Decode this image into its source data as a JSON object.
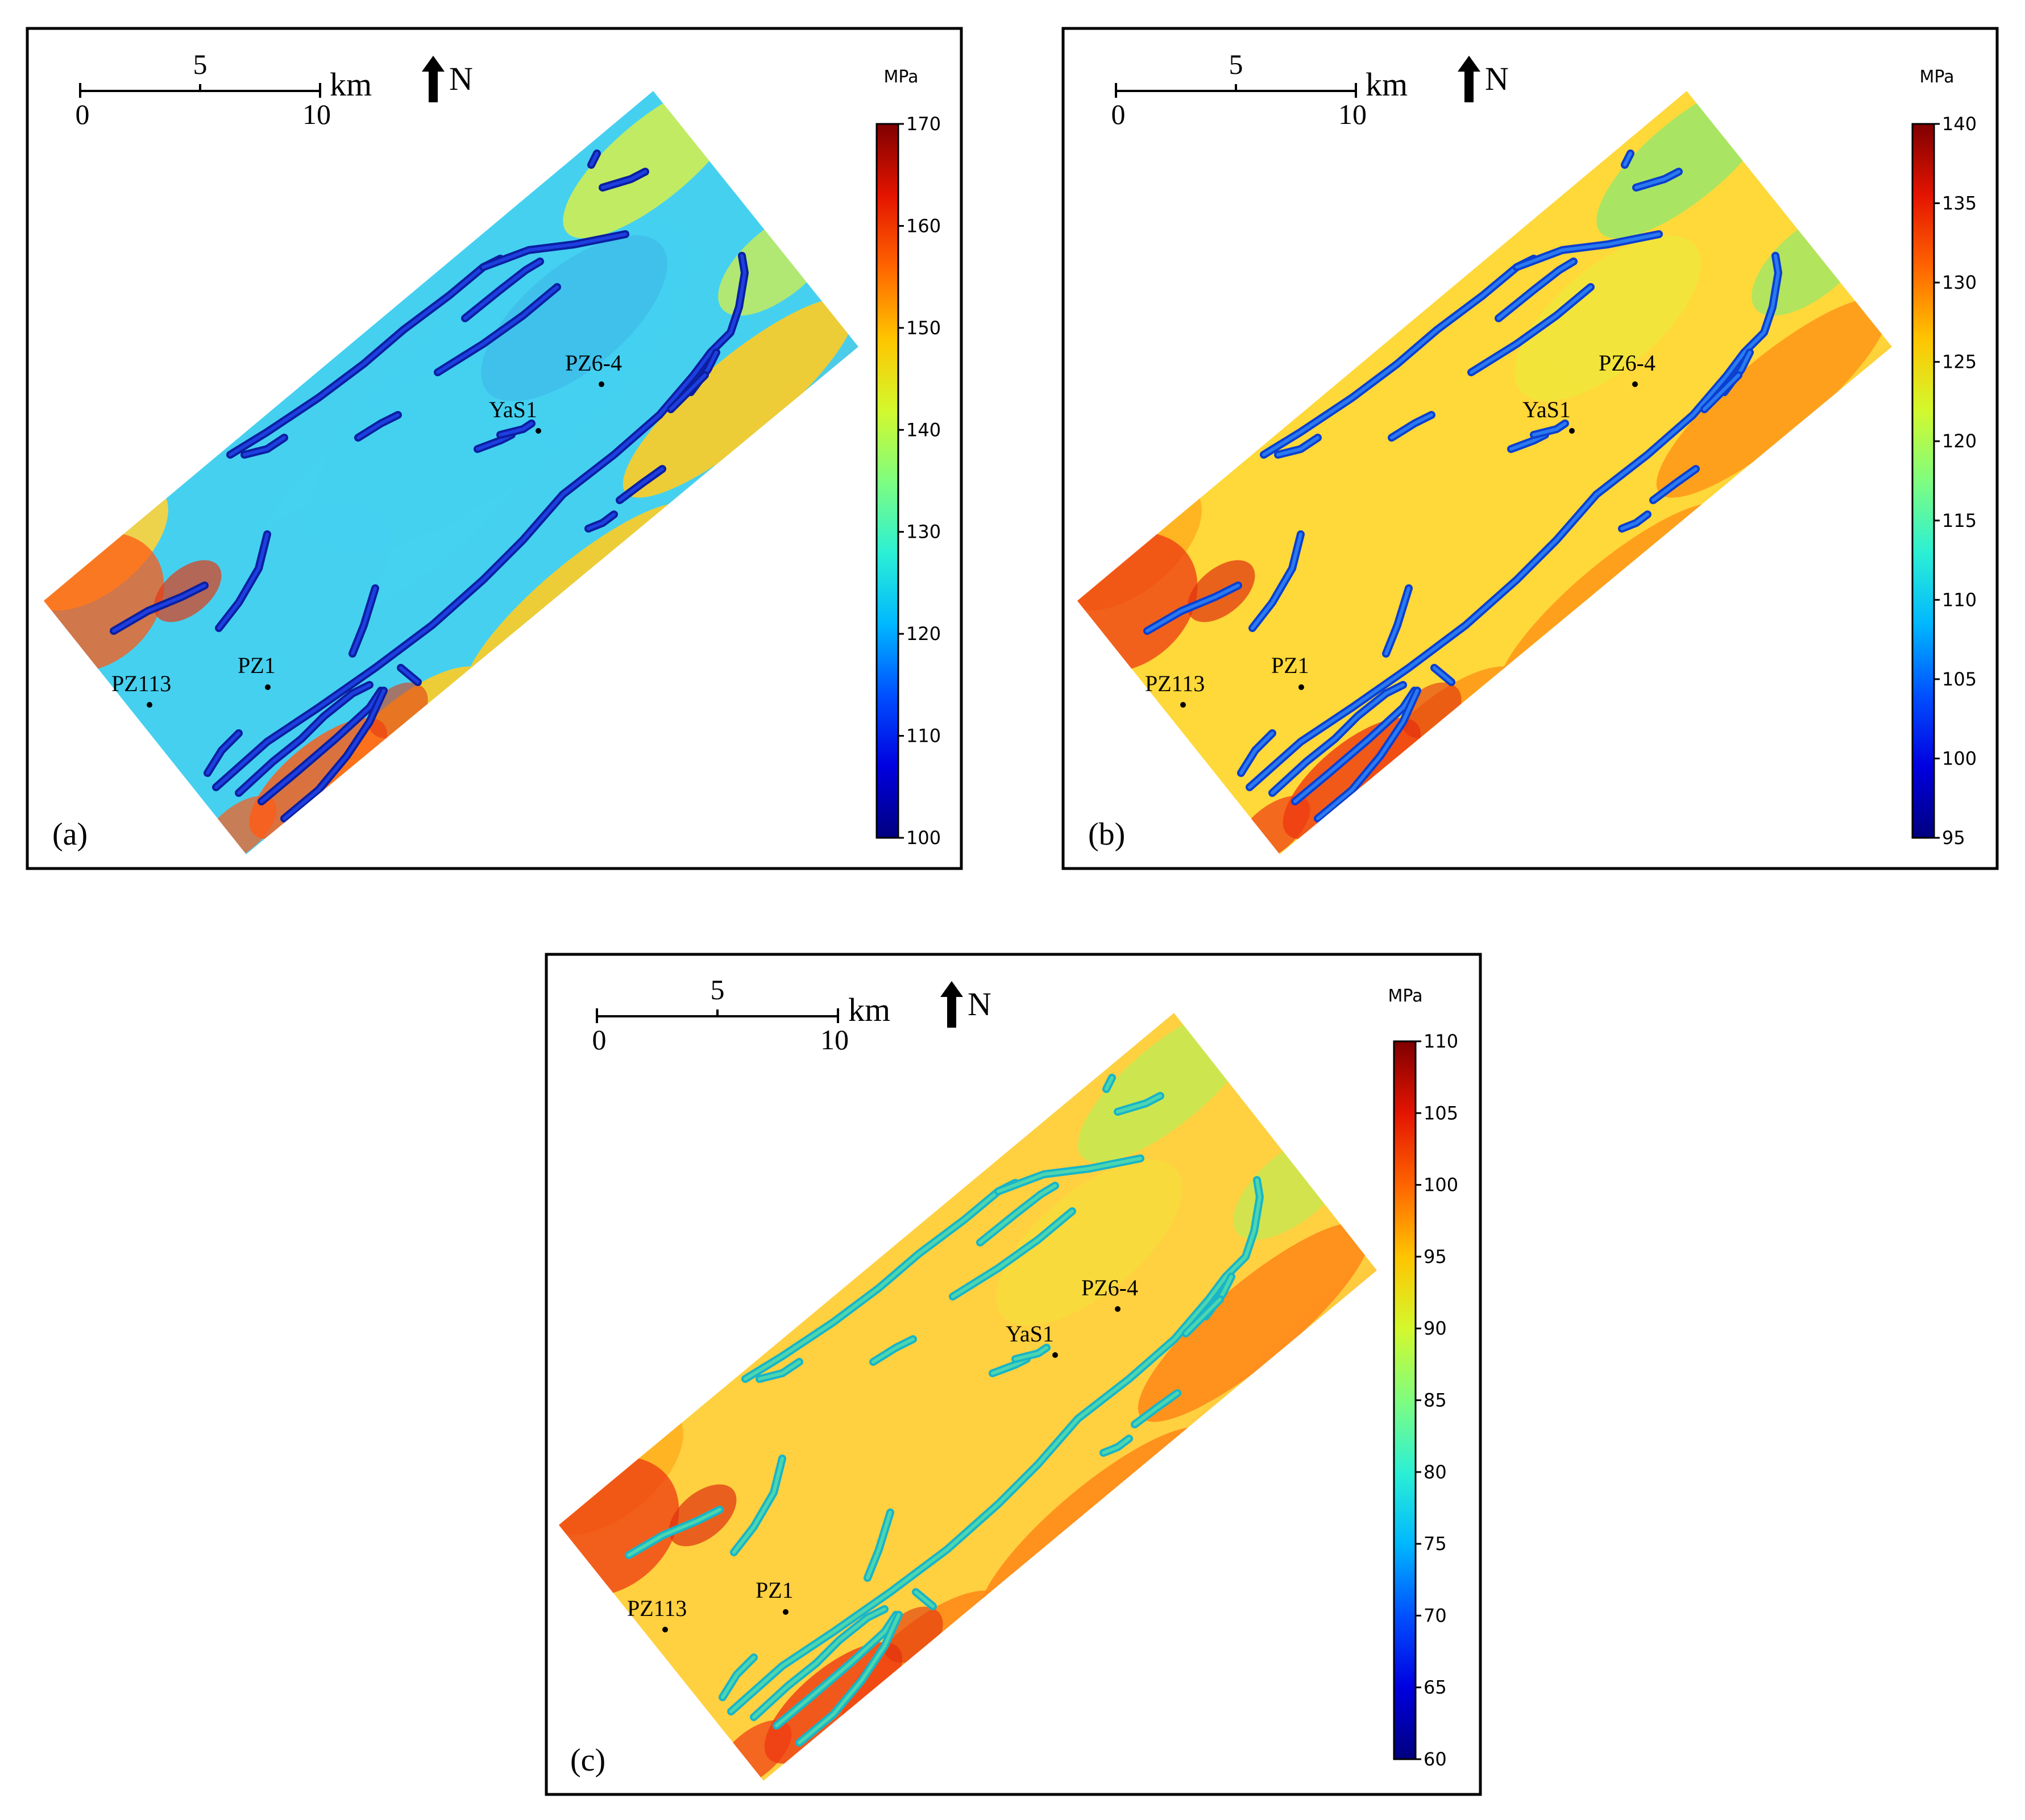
{
  "panels": [
    {
      "label": "(a)",
      "unit": "MPa",
      "colorbar": {
        "min": 100,
        "max": 170,
        "ticks": [
          "170",
          "160",
          "150",
          "140",
          "130",
          "120",
          "110",
          "100"
        ]
      },
      "scale_bar": {
        "zero": "0",
        "mid": "5",
        "end": "10",
        "unit": "km"
      },
      "north_label": "N",
      "wells": [
        {
          "name": "PZ6-4",
          "id": "pz6-4"
        },
        {
          "name": "YaS1",
          "id": "yas1"
        },
        {
          "name": "PZ1",
          "id": "pz1"
        },
        {
          "name": "PZ113",
          "id": "pz113"
        }
      ],
      "field_colors": {
        "nw_edge": "#ffd23a",
        "interior": "#45d0f0",
        "interior_deep": "#3db5e8",
        "se_edge": "#ffcc22",
        "sw_end": "#ff5a14",
        "ne_end": "#d6f04a",
        "hot_patch": "#e23a14"
      },
      "fault_colors": {
        "outer": "#0a1fa0",
        "inner": "#1e3fe0"
      }
    },
    {
      "label": "(b)",
      "unit": "MPa",
      "colorbar": {
        "min": 95,
        "max": 140,
        "ticks": [
          "140",
          "135",
          "130",
          "125",
          "120",
          "115",
          "110",
          "105",
          "100",
          "95"
        ]
      },
      "scale_bar": {
        "zero": "0",
        "mid": "5",
        "end": "10",
        "unit": "km"
      },
      "north_label": "N",
      "wells": [
        {
          "name": "PZ6-4",
          "id": "pz6-4"
        },
        {
          "name": "YaS1",
          "id": "yas1"
        },
        {
          "name": "PZ1",
          "id": "pz1"
        },
        {
          "name": "PZ113",
          "id": "pz113"
        }
      ],
      "field_colors": {
        "nw_edge": "#ffb020",
        "interior": "#ffd83a",
        "interior_deep": "#e9ee3c",
        "se_edge": "#ff9a1a",
        "sw_end": "#ee3a12",
        "ne_end": "#9ae86a",
        "hot_patch": "#e0300f"
      },
      "fault_colors": {
        "outer": "#0a3fd0",
        "inner": "#2a7af0"
      }
    },
    {
      "label": "(c)",
      "unit": "MPa",
      "colorbar": {
        "min": 60,
        "max": 110,
        "ticks": [
          "110",
          "105",
          "100",
          "95",
          "90",
          "85",
          "80",
          "75",
          "70",
          "65",
          "60"
        ]
      },
      "scale_bar": {
        "zero": "0",
        "mid": "5",
        "end": "10",
        "unit": "km"
      },
      "north_label": "N",
      "wells": [
        {
          "name": "PZ6-4",
          "id": "pz6-4"
        },
        {
          "name": "YaS1",
          "id": "yas1"
        },
        {
          "name": "PZ1",
          "id": "pz1"
        },
        {
          "name": "PZ113",
          "id": "pz113"
        }
      ],
      "field_colors": {
        "nw_edge": "#ffb020",
        "interior": "#ffd040",
        "interior_deep": "#f2e23a",
        "se_edge": "#ff8a1a",
        "sw_end": "#ee3a12",
        "ne_end": "#c4ea52",
        "hot_patch": "#e0300f"
      },
      "fault_colors": {
        "outer": "#18b4c8",
        "inner": "#4cd6b0"
      }
    }
  ],
  "colormap": [
    "#00007f",
    "#0000e0",
    "#0050ff",
    "#00b8ff",
    "#2cf0d4",
    "#7ffd7f",
    "#d4f82c",
    "#ffc400",
    "#ff6400",
    "#e41400",
    "#7f0000"
  ]
}
